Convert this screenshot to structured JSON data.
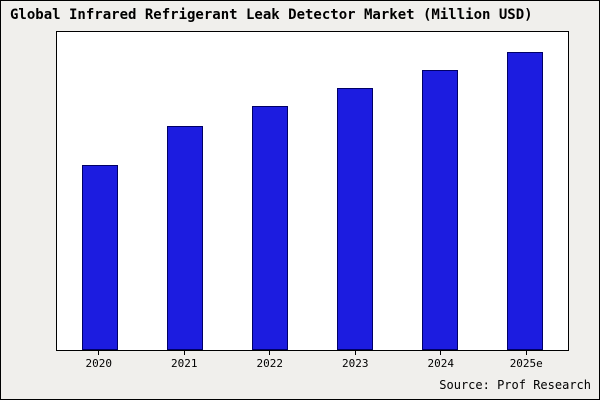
{
  "title": "Global Infrared Refrigerant Leak Detector Market (Million USD)",
  "source": "Source: Prof Research",
  "colors": {
    "page_background": "#f0efec",
    "plot_background": "#ffffff",
    "frame_border": "#000000",
    "bar_fill": "#1c1ce0",
    "bar_border": "#000066"
  },
  "chart_data": {
    "type": "bar",
    "title": "Global Infrared Refrigerant Leak Detector Market (Million USD)",
    "categories": [
      "2020",
      "2021",
      "2022",
      "2023",
      "2024",
      "2025e"
    ],
    "values": [
      62,
      75,
      82,
      88,
      94,
      100
    ],
    "values_estimated": true,
    "xlabel": "",
    "ylabel": "",
    "ylim": [
      0,
      105
    ],
    "grid": false,
    "legend": "none",
    "y_axis_tick_labels_visible": false
  }
}
